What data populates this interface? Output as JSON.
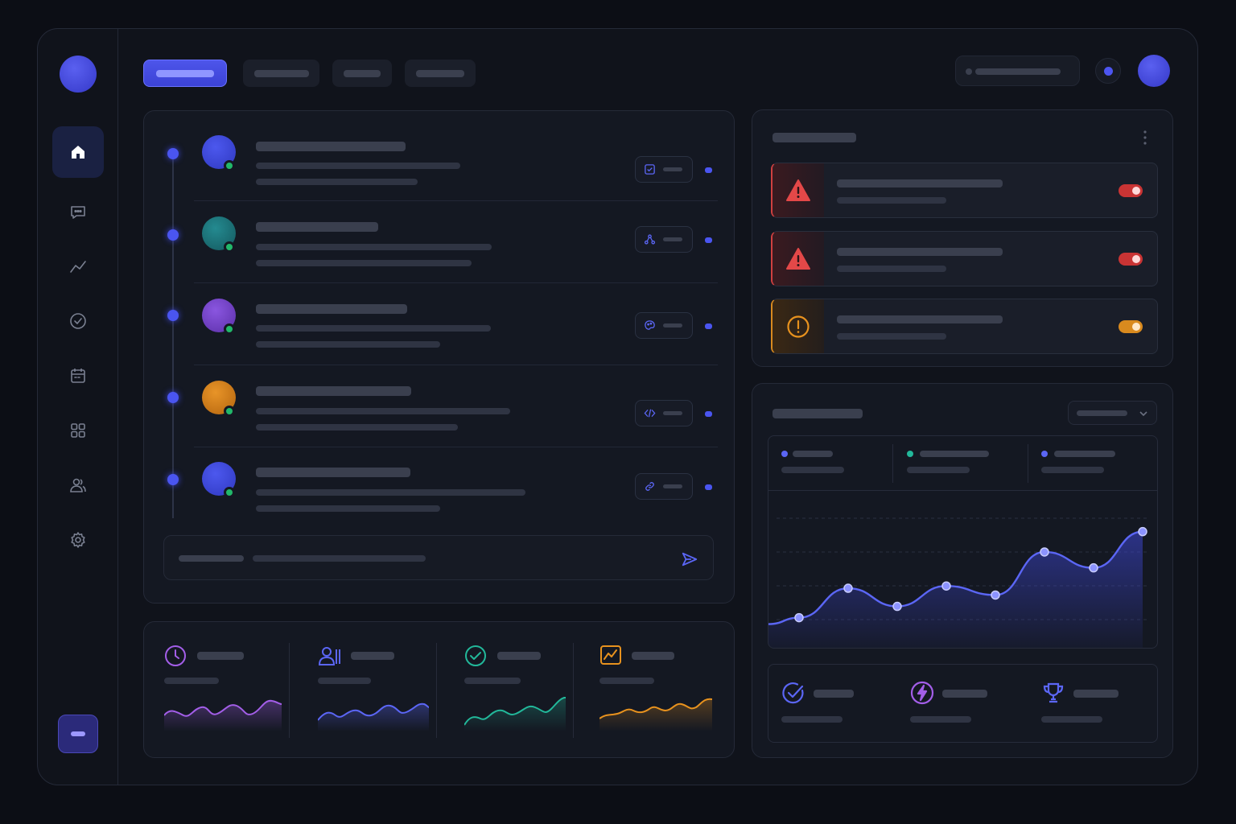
{
  "colors": {
    "accent": "#4c55f0",
    "danger": "#d04040",
    "warning": "#d98a1e",
    "online": "#22b86a",
    "sidebar_active_bg": "#1a2142"
  },
  "sidebar": {
    "items": [
      {
        "icon": "home-icon",
        "active": true
      },
      {
        "icon": "chat-icon",
        "active": false
      },
      {
        "icon": "analytics-icon",
        "active": false
      },
      {
        "icon": "check-circle-icon",
        "active": false
      },
      {
        "icon": "calendar-icon",
        "active": false
      },
      {
        "icon": "grid-icon",
        "active": false
      },
      {
        "icon": "users-icon",
        "active": false
      },
      {
        "icon": "gear-icon",
        "active": false
      }
    ]
  },
  "header": {
    "tabs": [
      {
        "active": true
      },
      {
        "active": false
      },
      {
        "active": false
      },
      {
        "active": false
      }
    ]
  },
  "feed": {
    "items": [
      {
        "avatar_color": "#3b47d8",
        "chip_icon": "checkbox-icon"
      },
      {
        "avatar_color": "#1e7a80",
        "chip_icon": "share-network-icon"
      },
      {
        "avatar_color": "#7544c8",
        "chip_icon": "palette-icon"
      },
      {
        "avatar_color": "#d7821e",
        "chip_icon": "code-icon"
      },
      {
        "avatar_color": "#3b47d8",
        "chip_icon": "link-icon"
      }
    ]
  },
  "alerts": {
    "items": [
      {
        "severity": "critical",
        "icon": "warning-triangle-icon",
        "enabled": true
      },
      {
        "severity": "critical",
        "icon": "warning-triangle-icon",
        "enabled": true
      },
      {
        "severity": "warning",
        "icon": "exclamation-circle-icon",
        "enabled": true
      }
    ]
  },
  "stats": {
    "items": [
      {
        "icon": "clock-icon",
        "color": "#a35ee8"
      },
      {
        "icon": "user-list-icon",
        "color": "#5b66f5"
      },
      {
        "icon": "check-circle-icon",
        "color": "#22b89a"
      },
      {
        "icon": "chart-box-icon",
        "color": "#e8921e"
      }
    ]
  },
  "chart_data": {
    "type": "area",
    "series": [
      {
        "values": [
          4,
          17,
          9,
          18,
          14,
          33,
          26,
          42
        ]
      }
    ],
    "legend_colors": [
      "#5b66f5",
      "#22b89a",
      "#5b66f5"
    ],
    "grid": true,
    "ylim": [
      -10,
      60
    ],
    "xlabel": "",
    "ylabel": ""
  },
  "kpis": {
    "items": [
      {
        "icon": "check-circle-icon",
        "color": "#5b66f5"
      },
      {
        "icon": "lightning-icon",
        "color": "#a35ee8"
      },
      {
        "icon": "trophy-icon",
        "color": "#5b66f5"
      }
    ]
  }
}
